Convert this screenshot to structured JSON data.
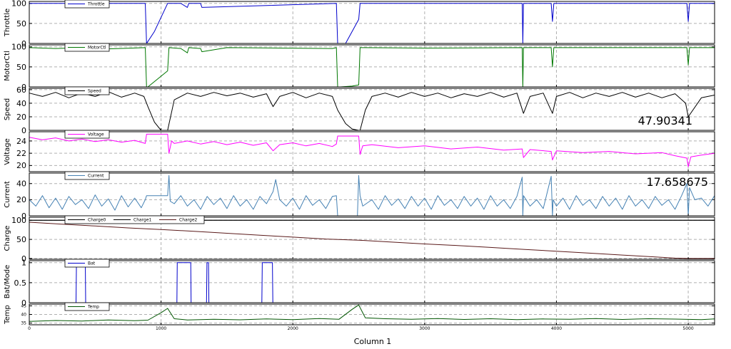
{
  "chart_data": {
    "type": "line",
    "xlabel": "Column 1",
    "xlim": [
      0,
      5200
    ],
    "xticks": [
      0,
      1000,
      2000,
      3000,
      4000,
      5000
    ],
    "grid": true,
    "legend_placement": "top-left",
    "panels": [
      {
        "ylabel": "Throttle",
        "ylim": [
          0,
          105
        ],
        "yticks": [
          0,
          50,
          100
        ],
        "series": [
          {
            "name": "Throttle",
            "color": "#0000cc",
            "x": [
              0,
              880,
              890,
              900,
              950,
              1050,
              1060,
              1150,
              1200,
              1210,
              1300,
              1310,
              2330,
              2340,
              2360,
              2400,
              2500,
              2510,
              3740,
              3745,
              3750,
              3960,
              3970,
              3980,
              4990,
              5000,
              5010,
              5200
            ],
            "y": [
              100,
              100,
              0,
              5,
              30,
              100,
              100,
              100,
              90,
              100,
              100,
              90,
              100,
              0,
              0,
              0,
              60,
              100,
              100,
              0,
              100,
              100,
              55,
              100,
              100,
              55,
              100,
              100
            ]
          }
        ]
      },
      {
        "ylabel": "MotorCtl",
        "ylim": [
          0,
          105
        ],
        "yticks": [
          0,
          50,
          100
        ],
        "series": [
          {
            "name": "MotorCtl",
            "color": "#007700",
            "x": [
              0,
              200,
              400,
              600,
              880,
              890,
              900,
              1050,
              1060,
              1150,
              1200,
              1210,
              1300,
              1310,
              1500,
              2300,
              2330,
              2340,
              2360,
              2450,
              2500,
              2510,
              3000,
              3740,
              3745,
              3750,
              3960,
              3970,
              3980,
              4990,
              5000,
              5010,
              5200
            ],
            "y": [
              98,
              96,
              98,
              95,
              98,
              0,
              0,
              40,
              98,
              96,
              85,
              98,
              96,
              88,
              98,
              96,
              98,
              0,
              0,
              2,
              5,
              98,
              97,
              98,
              0,
              98,
              98,
              50,
              98,
              98,
              55,
              98,
              98
            ]
          }
        ]
      },
      {
        "ylabel": "Speed",
        "ylim": [
          0,
          62
        ],
        "yticks": [
          0,
          20,
          40,
          60
        ],
        "annotation": "47.90341",
        "series": [
          {
            "name": "Speed",
            "color": "#000000",
            "x": [
              0,
              100,
              200,
              300,
              400,
              500,
              600,
              700,
              800,
              870,
              900,
              950,
              1000,
              1020,
              1050,
              1100,
              1200,
              1300,
              1400,
              1500,
              1600,
              1700,
              1800,
              1850,
              1900,
              2000,
              2100,
              2200,
              2300,
              2340,
              2400,
              2450,
              2500,
              2510,
              2550,
              2600,
              2700,
              2800,
              2900,
              3000,
              3100,
              3200,
              3300,
              3400,
              3500,
              3600,
              3700,
              3750,
              3800,
              3900,
              3970,
              4000,
              4100,
              4200,
              4300,
              4400,
              4500,
              4600,
              4700,
              4800,
              4900,
              4980,
              5000,
              5100,
              5200
            ],
            "y": [
              55,
              50,
              56,
              48,
              55,
              50,
              57,
              49,
              55,
              50,
              35,
              12,
              0,
              0,
              0,
              45,
              55,
              50,
              56,
              51,
              55,
              49,
              54,
              35,
              50,
              56,
              48,
              55,
              50,
              30,
              10,
              2,
              0,
              0,
              30,
              50,
              55,
              49,
              56,
              50,
              55,
              48,
              54,
              50,
              56,
              49,
              55,
              25,
              50,
              55,
              25,
              50,
              56,
              48,
              55,
              50,
              56,
              49,
              55,
              48,
              54,
              40,
              20,
              48,
              52
            ]
          }
        ]
      },
      {
        "ylabel": "Voltage",
        "ylim": [
          19,
          25.5
        ],
        "yticks": [
          20,
          22,
          24
        ],
        "series": [
          {
            "name": "Voltage",
            "color": "#ff00ff",
            "x": [
              0,
              100,
              200,
              300,
              400,
              500,
              600,
              700,
              800,
              880,
              890,
              1050,
              1060,
              1080,
              1100,
              1200,
              1300,
              1400,
              1500,
              1600,
              1700,
              1800,
              1850,
              1900,
              2000,
              2100,
              2200,
              2300,
              2330,
              2340,
              2500,
              2510,
              2530,
              2600,
              2800,
              3000,
              3200,
              3400,
              3600,
              3740,
              3750,
              3800,
              3960,
              3970,
              4000,
              4200,
              4400,
              4600,
              4800,
              4900,
              4990,
              5000,
              5020,
              5100,
              5200
            ],
            "y": [
              24.6,
              24.2,
              24.5,
              24.0,
              24.3,
              23.9,
              24.2,
              23.8,
              24.1,
              23.6,
              25.1,
              25.1,
              22.0,
              24.0,
              23.6,
              24.0,
              23.5,
              23.9,
              23.4,
              23.8,
              23.3,
              23.7,
              22.4,
              23.4,
              23.7,
              23.2,
              23.6,
              23.1,
              23.5,
              24.8,
              24.8,
              21.8,
              23.2,
              23.4,
              22.9,
              23.2,
              22.7,
              23.0,
              22.5,
              22.7,
              21.3,
              22.6,
              22.3,
              20.9,
              22.4,
              22.1,
              22.3,
              21.9,
              22.1,
              21.6,
              21.2,
              19.8,
              21.4,
              21.7,
              22.0
            ]
          }
        ]
      },
      {
        "ylabel": "Current",
        "ylim": [
          0,
          53
        ],
        "yticks": [
          0,
          20,
          40
        ],
        "annotation": "17.658675",
        "series": [
          {
            "name": "Current",
            "color": "#4682b4",
            "x": [
              0,
              50,
              100,
              150,
              200,
              250,
              300,
              350,
              400,
              450,
              500,
              550,
              600,
              650,
              700,
              750,
              800,
              850,
              880,
              890,
              1000,
              1050,
              1060,
              1070,
              1100,
              1150,
              1200,
              1250,
              1300,
              1350,
              1400,
              1450,
              1500,
              1550,
              1600,
              1650,
              1700,
              1750,
              1800,
              1850,
              1870,
              1900,
              1950,
              2000,
              2050,
              2100,
              2150,
              2200,
              2250,
              2300,
              2330,
              2340,
              2490,
              2500,
              2510,
              2530,
              2600,
              2650,
              2700,
              2750,
              2800,
              2850,
              2900,
              2950,
              3000,
              3050,
              3100,
              3150,
              3200,
              3250,
              3300,
              3350,
              3400,
              3450,
              3500,
              3550,
              3600,
              3650,
              3700,
              3740,
              3745,
              3750,
              3800,
              3850,
              3900,
              3960,
              3970,
              3975,
              4000,
              4050,
              4100,
              4150,
              4200,
              4250,
              4300,
              4350,
              4400,
              4450,
              4500,
              4550,
              4600,
              4650,
              4700,
              4750,
              4800,
              4850,
              4900,
              4950,
              4990,
              5000,
              5010,
              5050,
              5100,
              5150,
              5200
            ],
            "y": [
              20,
              12,
              25,
              10,
              22,
              8,
              24,
              14,
              20,
              9,
              26,
              12,
              21,
              7,
              25,
              11,
              22,
              10,
              20,
              25,
              25,
              25,
              50,
              18,
              15,
              25,
              12,
              20,
              8,
              24,
              14,
              22,
              9,
              25,
              12,
              20,
              8,
              24,
              15,
              30,
              45,
              20,
              12,
              22,
              8,
              25,
              13,
              20,
              9,
              24,
              25,
              0,
              0,
              50,
              25,
              12,
              20,
              8,
              25,
              13,
              21,
              9,
              24,
              12,
              22,
              8,
              25,
              13,
              20,
              9,
              24,
              12,
              22,
              8,
              25,
              12,
              20,
              9,
              24,
              48,
              0,
              25,
              12,
              20,
              9,
              49,
              0,
              20,
              12,
              22,
              8,
              25,
              13,
              20,
              9,
              24,
              12,
              22,
              8,
              25,
              12,
              20,
              9,
              24,
              13,
              20,
              8,
              25,
              40,
              0,
              35,
              20,
              22,
              12,
              25
            ]
          }
        ]
      },
      {
        "ylabel": "Charge",
        "ylim": [
          -2,
          108
        ],
        "yticks": [
          0,
          50,
          100
        ],
        "series": [
          {
            "name": "Charge0",
            "color": "#000000",
            "x": [
              0,
              5200
            ],
            "y": [
              100,
              100
            ]
          },
          {
            "name": "Charge1",
            "color": "#000000",
            "x": [
              0,
              5200
            ],
            "y": [
              100,
              100
            ]
          },
          {
            "name": "Charge2",
            "color": "#5a1a1a",
            "x": [
              0,
              250,
              500,
              750,
              1000,
              1250,
              1500,
              1750,
              2000,
              2250,
              2500,
              2750,
              3000,
              3250,
              3500,
              3750,
              4000,
              4250,
              4500,
              4750,
              4900,
              5000,
              5200
            ],
            "y": [
              95,
              90,
              85,
              80,
              76,
              71,
              66,
              61,
              56,
              51,
              48,
              43,
              38,
              34,
              29,
              24,
              19,
              14,
              9,
              4,
              1,
              0,
              0
            ]
          }
        ]
      },
      {
        "ylabel": "Bat/Mode",
        "ylim": [
          0,
          1.05
        ],
        "yticks": [
          0,
          0.5,
          1
        ],
        "series": [
          {
            "name": "Bat",
            "color": "#0000cc",
            "x": [
              0,
              355,
              358,
              425,
              428,
              1120,
              1123,
              1225,
              1228,
              1345,
              1348,
              1360,
              1363,
              1765,
              1768,
              1845,
              1848,
              5200
            ],
            "y": [
              0,
              0,
              1,
              1,
              0,
              0,
              1,
              1,
              0,
              0,
              1,
              1,
              0,
              0,
              1,
              1,
              0,
              0
            ]
          }
        ]
      },
      {
        "ylabel": "Temp",
        "ylim": [
          34,
          46
        ],
        "yticks": [
          35,
          40,
          45
        ],
        "series": [
          {
            "name": "Temp",
            "color": "#005500",
            "x": [
              0,
              200,
              400,
              600,
              800,
              900,
              1000,
              1050,
              1100,
              1200,
              1400,
              1600,
              1800,
              2000,
              2200,
              2350,
              2450,
              2500,
              2550,
              2700,
              2900,
              3100,
              3300,
              3500,
              3700,
              3900,
              4100,
              4300,
              4500,
              4700,
              4900,
              5100,
              5200
            ],
            "y": [
              36.0,
              36.5,
              36.2,
              36.8,
              36.4,
              36.7,
              41.0,
              43.5,
              37.5,
              36.8,
              37.2,
              36.9,
              37.4,
              37.0,
              37.6,
              37.2,
              43.0,
              45.5,
              38.0,
              37.5,
              37.2,
              37.6,
              37.1,
              37.5,
              37.0,
              37.4,
              37.2,
              37.6,
              37.1,
              37.5,
              37.3,
              37.0,
              37.4
            ]
          }
        ]
      }
    ]
  }
}
